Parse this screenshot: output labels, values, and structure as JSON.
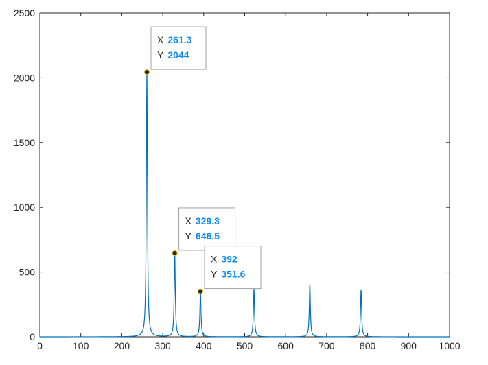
{
  "chart_data": {
    "type": "line",
    "title": "",
    "xlabel": "",
    "ylabel": "",
    "xlim": [
      0,
      1000
    ],
    "ylim": [
      0,
      2500
    ],
    "grid": false,
    "x_ticks": [
      "0",
      "100",
      "200",
      "300",
      "400",
      "500",
      "600",
      "700",
      "800",
      "900",
      "1000"
    ],
    "y_ticks": [
      "0",
      "500",
      "1000",
      "1500",
      "2000",
      "2500"
    ],
    "line_color": "#0072bd",
    "series": [
      {
        "peaks": [
          {
            "x": 261.3,
            "y": 2044
          },
          {
            "x": 329.3,
            "y": 646.5
          },
          {
            "x": 392,
            "y": 351.6
          },
          {
            "x": 522.6,
            "y": 370
          },
          {
            "x": 659,
            "y": 405
          },
          {
            "x": 784,
            "y": 365
          }
        ]
      }
    ],
    "datatips": [
      {
        "x_label": "X",
        "x_value": "261.3",
        "y_label": "Y",
        "y_value": "2044",
        "x": 261.3,
        "y": 2044
      },
      {
        "x_label": "X",
        "x_value": "329.3",
        "y_label": "Y",
        "y_value": "646.5",
        "x": 329.3,
        "y": 646.5
      },
      {
        "x_label": "X",
        "x_value": "392",
        "y_label": "Y",
        "y_value": "351.6",
        "x": 392,
        "y": 351.6
      }
    ]
  }
}
